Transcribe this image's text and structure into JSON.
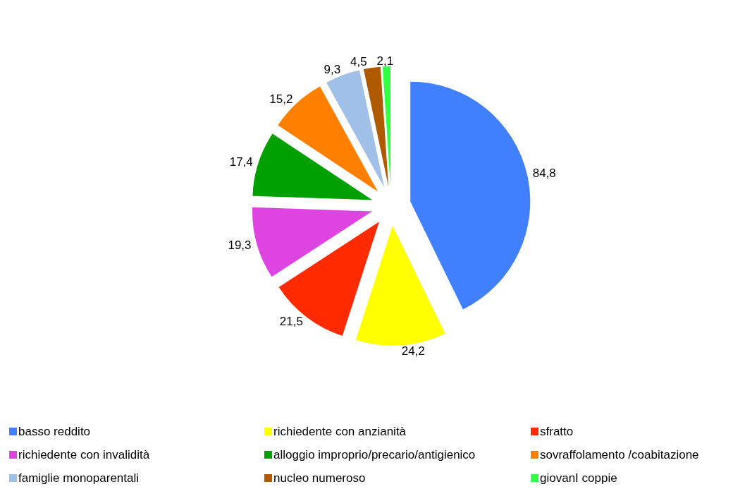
{
  "chart_data": {
    "type": "pie",
    "categories": [
      "basso reddito",
      "richiedente con anzianità",
      "sfratto",
      "richiedente con invalidità",
      "alloggio improprio/precario/antigienico",
      "sovraffolamento /coabitazione",
      "famiglie monoparentali",
      "nucleo numeroso",
      "giovanI coppie"
    ],
    "values": [
      84.8,
      24.2,
      21.5,
      19.3,
      17.4,
      15.2,
      9.3,
      4.5,
      2.1
    ],
    "value_labels": [
      "84,8",
      "24,2",
      "21,5",
      "19,3",
      "17,4",
      "15,2",
      "9,3",
      "4,5",
      "2,1"
    ],
    "colors": [
      "#4080ff",
      "#ffff00",
      "#ff2a00",
      "#dd44e0",
      "#00a000",
      "#ff8000",
      "#a0c0e8",
      "#b05a00",
      "#33ff44"
    ],
    "legend": "bottom"
  }
}
